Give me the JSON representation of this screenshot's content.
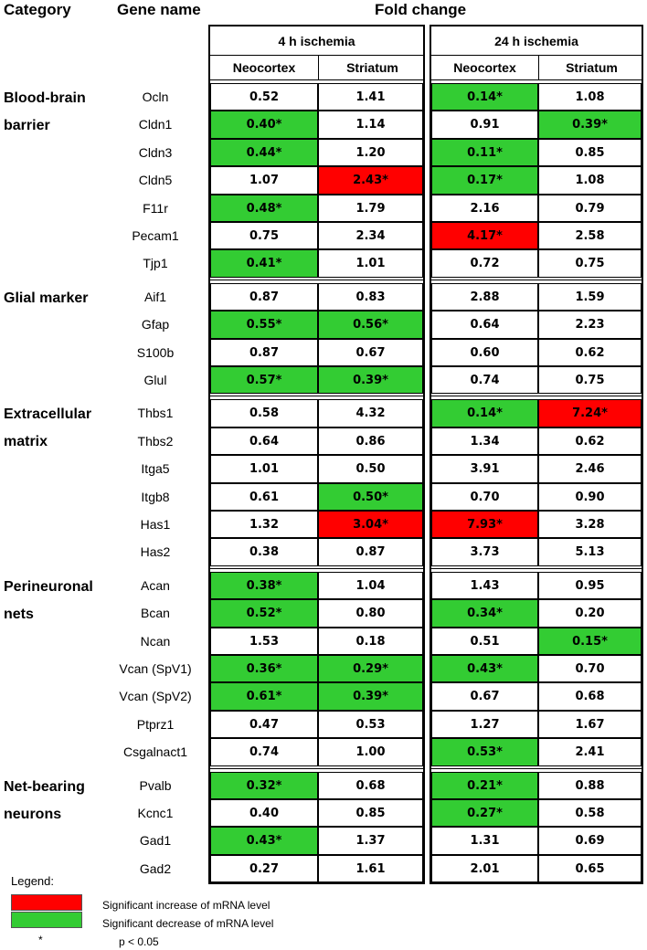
{
  "headers": {
    "category": "Category",
    "gene": "Gene name",
    "fold": "Fold change",
    "panel1": "4 h ischemia",
    "panel2": "24 h ischemia",
    "neocortex": "Neocortex",
    "striatum": "Striatum"
  },
  "colors": {
    "increase": "#ff0000",
    "decrease": "#33cc33",
    "none": "#ffffff"
  },
  "chart_data": {
    "type": "table",
    "columns": [
      "4 h ischemia Neocortex",
      "4 h ischemia Striatum",
      "24 h ischemia Neocortex",
      "24 h ischemia Striatum"
    ],
    "groups": [
      {
        "category": [
          "Blood-brain",
          "barrier"
        ],
        "rows": [
          {
            "gene": "Ocln",
            "values": [
              "0.52",
              "1.41",
              "0.14*",
              "1.08"
            ],
            "sig": [
              "",
              "",
              "down",
              ""
            ]
          },
          {
            "gene": "Cldn1",
            "values": [
              "0.40*",
              "1.14",
              "0.91",
              "0.39*"
            ],
            "sig": [
              "down",
              "",
              "",
              "down"
            ]
          },
          {
            "gene": "Cldn3",
            "values": [
              "0.44*",
              "1.20",
              "0.11*",
              "0.85"
            ],
            "sig": [
              "down",
              "",
              "down",
              ""
            ]
          },
          {
            "gene": "Cldn5",
            "values": [
              "1.07",
              "2.43*",
              "0.17*",
              "1.08"
            ],
            "sig": [
              "",
              "up",
              "down",
              ""
            ]
          },
          {
            "gene": "F11r",
            "values": [
              "0.48*",
              "1.79",
              "2.16",
              "0.79"
            ],
            "sig": [
              "down",
              "",
              "",
              ""
            ]
          },
          {
            "gene": "Pecam1",
            "values": [
              "0.75",
              "2.34",
              "4.17*",
              "2.58"
            ],
            "sig": [
              "",
              "",
              "up",
              ""
            ]
          },
          {
            "gene": "Tjp1",
            "values": [
              "0.41*",
              "1.01",
              "0.72",
              "0.75"
            ],
            "sig": [
              "down",
              "",
              "",
              ""
            ]
          }
        ]
      },
      {
        "category": [
          "Glial marker"
        ],
        "rows": [
          {
            "gene": "Aif1",
            "values": [
              "0.87",
              "0.83",
              "2.88",
              "1.59"
            ],
            "sig": [
              "",
              "",
              "",
              ""
            ]
          },
          {
            "gene": "Gfap",
            "values": [
              "0.55*",
              "0.56*",
              "0.64",
              "2.23"
            ],
            "sig": [
              "down",
              "down",
              "",
              ""
            ]
          },
          {
            "gene": "S100b",
            "values": [
              "0.87",
              "0.67",
              "0.60",
              "0.62"
            ],
            "sig": [
              "",
              "",
              "",
              ""
            ]
          },
          {
            "gene": "Glul",
            "values": [
              "0.57*",
              "0.39*",
              "0.74",
              "0.75"
            ],
            "sig": [
              "down",
              "down",
              "",
              ""
            ]
          }
        ]
      },
      {
        "category": [
          "Extracellular",
          "matrix"
        ],
        "rows": [
          {
            "gene": "Thbs1",
            "values": [
              "0.58",
              "4.32",
              "0.14*",
              "7.24*"
            ],
            "sig": [
              "",
              "",
              "down",
              "up"
            ]
          },
          {
            "gene": "Thbs2",
            "values": [
              "0.64",
              "0.86",
              "1.34",
              "0.62"
            ],
            "sig": [
              "",
              "",
              "",
              ""
            ]
          },
          {
            "gene": "Itga5",
            "values": [
              "1.01",
              "0.50",
              "3.91",
              "2.46"
            ],
            "sig": [
              "",
              "",
              "",
              ""
            ]
          },
          {
            "gene": "Itgb8",
            "values": [
              "0.61",
              "0.50*",
              "0.70",
              "0.90"
            ],
            "sig": [
              "",
              "down",
              "",
              ""
            ]
          },
          {
            "gene": "Has1",
            "values": [
              "1.32",
              "3.04*",
              "7.93*",
              "3.28"
            ],
            "sig": [
              "",
              "up",
              "up",
              ""
            ]
          },
          {
            "gene": "Has2",
            "values": [
              "0.38",
              "0.87",
              "3.73",
              "5.13"
            ],
            "sig": [
              "",
              "",
              "",
              ""
            ]
          }
        ]
      },
      {
        "category": [
          "Perineuronal",
          "nets"
        ],
        "rows": [
          {
            "gene": "Acan",
            "values": [
              "0.38*",
              "1.04",
              "1.43",
              "0.95"
            ],
            "sig": [
              "down",
              "",
              "",
              ""
            ]
          },
          {
            "gene": "Bcan",
            "values": [
              "0.52*",
              "0.80",
              "0.34*",
              "0.20"
            ],
            "sig": [
              "down",
              "",
              "down",
              ""
            ]
          },
          {
            "gene": "Ncan",
            "values": [
              "1.53",
              "0.18",
              "0.51",
              "0.15*"
            ],
            "sig": [
              "",
              "",
              "",
              "down"
            ]
          },
          {
            "gene": "Vcan (SpV1)",
            "values": [
              "0.36*",
              "0.29*",
              "0.43*",
              "0.70"
            ],
            "sig": [
              "down",
              "down",
              "down",
              ""
            ]
          },
          {
            "gene": "Vcan (SpV2)",
            "values": [
              "0.61*",
              "0.39*",
              "0.67",
              "0.68"
            ],
            "sig": [
              "down",
              "down",
              "",
              ""
            ]
          },
          {
            "gene": "Ptprz1",
            "values": [
              "0.47",
              "0.53",
              "1.27",
              "1.67"
            ],
            "sig": [
              "",
              "",
              "",
              ""
            ]
          },
          {
            "gene": "Csgalnact1",
            "values": [
              "0.74",
              "1.00",
              "0.53*",
              "2.41"
            ],
            "sig": [
              "",
              "",
              "down",
              ""
            ]
          }
        ]
      },
      {
        "category": [
          "Net-bearing",
          "neurons"
        ],
        "rows": [
          {
            "gene": "Pvalb",
            "values": [
              "0.32*",
              "0.68",
              "0.21*",
              "0.88"
            ],
            "sig": [
              "down",
              "",
              "down",
              ""
            ]
          },
          {
            "gene": "Kcnc1",
            "values": [
              "0.40",
              "0.85",
              "0.27*",
              "0.58"
            ],
            "sig": [
              "",
              "",
              "down",
              ""
            ]
          },
          {
            "gene": "Gad1",
            "values": [
              "0.43*",
              "1.37",
              "1.31",
              "0.69"
            ],
            "sig": [
              "down",
              "",
              "",
              ""
            ]
          },
          {
            "gene": "Gad2",
            "values": [
              "0.27",
              "1.61",
              "2.01",
              "0.65"
            ],
            "sig": [
              "",
              "",
              "",
              ""
            ]
          }
        ]
      }
    ]
  },
  "legend": {
    "title": "Legend:",
    "increase": "Significant increase of mRNA level",
    "decrease": "Significant decrease of mRNA level",
    "star": "*",
    "pvalue": "p < 0.05"
  }
}
